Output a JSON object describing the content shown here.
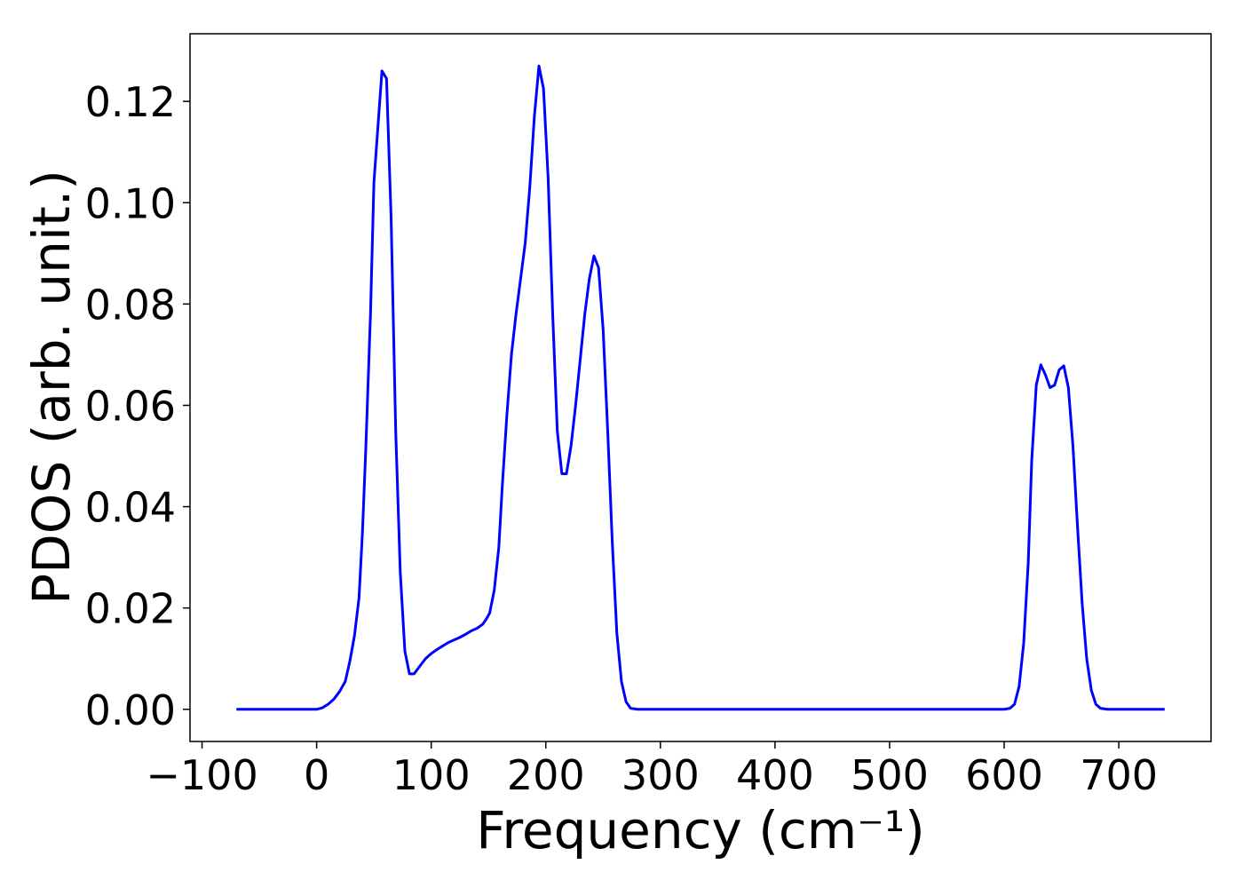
{
  "chart_data": {
    "type": "line",
    "xlabel": "Frequency (cm⁻¹)",
    "ylabel": "PDOS (arb. unit.)",
    "x": [
      -70,
      0,
      5,
      10,
      15,
      20,
      25,
      29,
      33,
      37,
      40,
      43,
      47,
      50,
      57,
      61,
      65,
      69,
      73,
      77,
      81,
      85,
      90,
      95,
      100,
      105,
      110,
      115,
      120,
      125,
      130,
      135,
      140,
      145,
      148,
      151,
      155,
      159,
      162,
      166,
      170,
      174,
      178,
      182,
      186,
      190,
      194,
      198,
      202,
      206,
      210,
      214,
      218,
      222,
      226,
      230,
      234,
      238,
      242,
      246,
      250,
      254,
      258,
      262,
      266,
      270,
      274,
      280,
      600,
      605,
      609,
      613,
      617,
      621,
      624,
      628,
      632,
      636,
      640,
      644,
      648,
      652,
      656,
      660,
      664,
      668,
      672,
      676,
      680,
      684,
      690,
      740
    ],
    "series": [
      {
        "name": "PDOS",
        "color": "#0000ff",
        "values": [
          0,
          0,
          0.0003,
          0.001,
          0.002,
          0.0035,
          0.0055,
          0.0095,
          0.0145,
          0.022,
          0.035,
          0.052,
          0.078,
          0.104,
          0.126,
          0.1245,
          0.097,
          0.055,
          0.027,
          0.0115,
          0.007,
          0.007,
          0.0085,
          0.01,
          0.011,
          0.0118,
          0.0125,
          0.0132,
          0.0137,
          0.0142,
          0.0148,
          0.0155,
          0.016,
          0.0168,
          0.0178,
          0.019,
          0.0235,
          0.032,
          0.044,
          0.058,
          0.07,
          0.078,
          0.085,
          0.092,
          0.103,
          0.117,
          0.127,
          0.1225,
          0.105,
          0.078,
          0.055,
          0.0465,
          0.0465,
          0.052,
          0.06,
          0.069,
          0.078,
          0.085,
          0.0895,
          0.0872,
          0.075,
          0.055,
          0.033,
          0.015,
          0.0055,
          0.0015,
          0.0002,
          0,
          0,
          0.0002,
          0.001,
          0.0045,
          0.013,
          0.029,
          0.049,
          0.064,
          0.068,
          0.066,
          0.0635,
          0.064,
          0.067,
          0.0678,
          0.0635,
          0.052,
          0.036,
          0.021,
          0.01,
          0.0038,
          0.001,
          0.0002,
          0,
          0
        ]
      }
    ],
    "xlim": [
      -110.5,
      780.5
    ],
    "ylim": [
      -0.00635,
      0.13335
    ],
    "xticks": [
      {
        "value": -100,
        "label": "−100"
      },
      0,
      100,
      200,
      300,
      400,
      500,
      600,
      700
    ],
    "yticks": [
      {
        "value": 0,
        "label": "0.00"
      },
      {
        "value": 0.02,
        "label": "0.02"
      },
      {
        "value": 0.04,
        "label": "0.04"
      },
      {
        "value": 0.06,
        "label": "0.06"
      },
      {
        "value": 0.08,
        "label": "0.08"
      },
      {
        "value": 0.1,
        "label": "0.10"
      },
      {
        "value": 0.12,
        "label": "0.12"
      }
    ],
    "grid": false
  }
}
